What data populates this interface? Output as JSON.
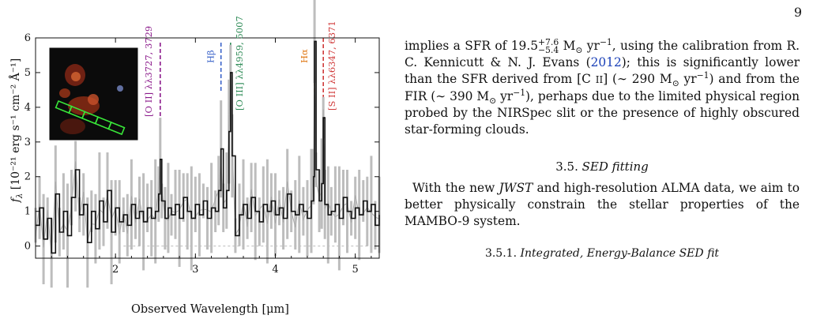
{
  "page_number": "9",
  "figure": {
    "xlabel": "Observed Wavelength [μm]",
    "ylabel_main": "f",
    "ylabel_sub": "λ",
    "ylabel_units": " [10⁻²¹ erg s⁻¹ cm⁻² Å⁻¹]",
    "xticks": [
      "2",
      "3",
      "4",
      "5"
    ],
    "yticks": [
      "0",
      "1",
      "2",
      "3",
      "4",
      "5",
      "6"
    ],
    "line_labels": [
      {
        "label": "[O II] λλ3727, 3729",
        "color": "#8b1a8b"
      },
      {
        "label": "Hβ",
        "color": "#3a63c9"
      },
      {
        "label": "[O III] λλ4959, 5007",
        "color": "#2e8b57"
      },
      {
        "label": "Hα",
        "color": "#e07b1a"
      },
      {
        "label": "[S II] λλ6347, 6371",
        "color": "#d03a3a"
      }
    ],
    "inset_image": {
      "description_colors": {
        "background": "#0a0a0a",
        "source": "#b43218",
        "slit": "#32e632"
      }
    }
  },
  "chart_data": {
    "type": "line",
    "title": "",
    "xlabel": "Observed Wavelength [μm]",
    "ylabel": "f_λ [10^-21 erg s^-1 cm^-2 Å^-1]",
    "xlim": [
      1.0,
      5.3
    ],
    "ylim": [
      -0.35,
      6.0
    ],
    "xticks": [
      2,
      3,
      4,
      5
    ],
    "yticks": [
      0,
      1,
      2,
      3,
      4,
      5,
      6
    ],
    "emission_lines": [
      {
        "name": "[O II] λλ3727, 3729",
        "x": 2.56
      },
      {
        "name": "Hβ",
        "x": 3.32
      },
      {
        "name": "[O III] λλ4959, 5007",
        "x": 3.44
      },
      {
        "name": "Hα",
        "x": 4.49
      },
      {
        "name": "[S II] λλ6347, 6371",
        "x": 4.6
      }
    ],
    "series": [
      {
        "x": [
          1.0,
          1.05,
          1.1,
          1.15,
          1.2,
          1.25,
          1.3,
          1.35,
          1.4,
          1.45,
          1.5,
          1.55,
          1.6,
          1.65,
          1.7,
          1.75,
          1.8,
          1.85,
          1.9,
          1.95,
          2.0,
          2.05,
          2.1,
          2.15,
          2.2,
          2.25,
          2.3,
          2.35,
          2.4,
          2.45,
          2.5,
          2.54,
          2.56,
          2.58,
          2.62,
          2.66,
          2.7,
          2.75,
          2.8,
          2.85,
          2.9,
          2.95,
          3.0,
          3.05,
          3.1,
          3.15,
          3.2,
          3.25,
          3.29,
          3.32,
          3.35,
          3.39,
          3.42,
          3.44,
          3.46,
          3.5,
          3.55,
          3.6,
          3.65,
          3.7,
          3.75,
          3.8,
          3.85,
          3.9,
          3.95,
          4.0,
          4.05,
          4.1,
          4.15,
          4.2,
          4.25,
          4.3,
          4.35,
          4.4,
          4.45,
          4.48,
          4.49,
          4.51,
          4.55,
          4.58,
          4.6,
          4.62,
          4.66,
          4.7,
          4.75,
          4.8,
          4.85,
          4.9,
          4.95,
          5.0,
          5.05,
          5.1,
          5.15,
          5.2,
          5.25,
          5.3
        ],
        "y": [
          0.6,
          1.1,
          0.2,
          0.8,
          -0.2,
          1.5,
          0.4,
          1.0,
          0.3,
          1.4,
          2.2,
          0.9,
          1.2,
          0.1,
          1.0,
          0.5,
          1.3,
          0.7,
          1.6,
          0.4,
          1.1,
          0.7,
          0.9,
          0.6,
          1.2,
          0.8,
          1.0,
          0.7,
          1.1,
          0.8,
          1.0,
          1.5,
          2.5,
          1.3,
          0.8,
          1.1,
          0.9,
          1.2,
          0.8,
          1.4,
          1.0,
          0.8,
          1.2,
          0.9,
          1.3,
          0.8,
          1.1,
          1.0,
          1.6,
          2.8,
          1.1,
          1.6,
          3.3,
          5.0,
          2.6,
          0.3,
          0.9,
          1.2,
          0.8,
          1.4,
          1.0,
          0.7,
          1.2,
          1.0,
          1.3,
          0.9,
          1.1,
          0.8,
          1.5,
          1.0,
          0.9,
          1.2,
          1.0,
          0.8,
          1.3,
          2.0,
          5.9,
          2.2,
          1.3,
          1.8,
          3.7,
          1.2,
          0.9,
          1.0,
          1.2,
          0.8,
          1.4,
          1.0,
          0.8,
          1.1,
          0.9,
          1.3,
          1.0,
          1.2,
          0.6,
          0.9
        ]
      }
    ]
  },
  "text": {
    "p1_a": "implies a SFR of 19.5",
    "p1_sup": "+7.6",
    "p1_sub": "−5.4",
    "p1_b": " M",
    "p1_sun": "⊙",
    "p1_c": " yr",
    "p1_exp": "−1",
    "p1_d": ", using the calibration from R. C. Kennicutt & N. J. Evans (",
    "p1_link": "2012",
    "p1_e": "); this is significantly lower than the SFR derived from [C ",
    "p1_roman": "II",
    "p1_f": "] (∼ 290 M",
    "p1_g": " yr",
    "p1_h": ") and from the FIR (∼ 390 M",
    "p1_i": " yr",
    "p1_j": "), perhaps due to the limited physical region probed by the NIRSpec slit or the presence of highly obscured star-forming clouds.",
    "sec_num": "3.5.",
    "sec_title": "SED fitting",
    "p2_a": "With the new ",
    "p2_jwst": "JWST",
    "p2_b": " and high-resolution ALMA data, we aim to better physically constrain the stellar properties of the MAMBO-9 system.",
    "subsec_num": "3.5.1.",
    "subsec_title": "Integrated, Energy-Balance SED fit"
  }
}
